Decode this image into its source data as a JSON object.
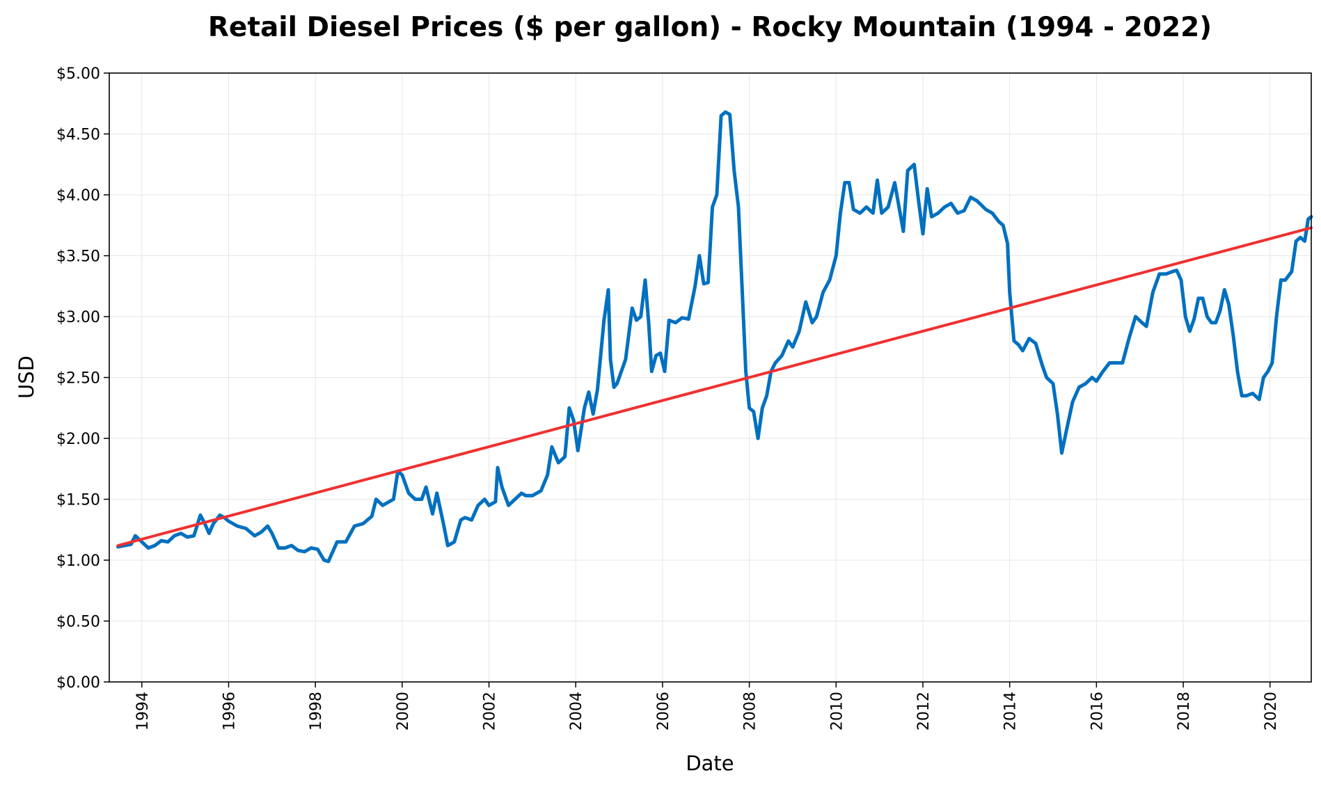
{
  "chart_data": {
    "type": "line",
    "title": "Retail Diesel Prices ($ per gallon) - Rocky Mountain (1994 - 2022)",
    "xlabel": "Date",
    "ylabel": "USD",
    "xlim": [
      1993.25,
      2020.95
    ],
    "ylim": [
      0,
      5
    ],
    "grid": true,
    "legend": "none",
    "x_tick_labels": [
      "1994",
      "1996",
      "1998",
      "2000",
      "2002",
      "2004",
      "2006",
      "2008",
      "2010",
      "2012",
      "2014",
      "2016",
      "2018",
      "2020"
    ],
    "y_tick_labels": [
      "$0.00",
      "$0.50",
      "$1.00",
      "$1.50",
      "$2.00",
      "$2.50",
      "$3.00",
      "$3.50",
      "$4.00",
      "$4.50",
      "$5.00"
    ],
    "series": [
      {
        "color": "#0070c0",
        "x": [
          1993.45,
          1993.6,
          1993.75,
          1993.85,
          1994.0,
          1994.15,
          1994.3,
          1994.45,
          1994.6,
          1994.75,
          1994.9,
          1995.05,
          1995.2,
          1995.35,
          1995.45,
          1995.55,
          1995.65,
          1995.8,
          1995.9,
          1996.0,
          1996.2,
          1996.4,
          1996.6,
          1996.75,
          1996.9,
          1997.0,
          1997.15,
          1997.3,
          1997.45,
          1997.6,
          1997.75,
          1997.9,
          1998.05,
          1998.2,
          1998.3,
          1998.5,
          1998.7,
          1998.9,
          1999.1,
          1999.3,
          1999.4,
          1999.55,
          1999.7,
          1999.8,
          1999.9,
          2000.0,
          2000.15,
          2000.3,
          2000.45,
          2000.55,
          2000.7,
          2000.8,
          2000.95,
          2001.05,
          2001.2,
          2001.35,
          2001.45,
          2001.6,
          2001.75,
          2001.9,
          2002.0,
          2002.15,
          2002.2,
          2002.3,
          2002.45,
          2002.6,
          2002.75,
          2002.85,
          2003.0,
          2003.2,
          2003.35,
          2003.45,
          2003.6,
          2003.75,
          2003.85,
          2003.95,
          2004.05,
          2004.2,
          2004.3,
          2004.4,
          2004.5,
          2004.65,
          2004.75,
          2004.8,
          2004.88,
          2004.95,
          2005.05,
          2005.15,
          2005.3,
          2005.4,
          2005.5,
          2005.6,
          2005.68,
          2005.75,
          2005.85,
          2005.95,
          2006.05,
          2006.15,
          2006.3,
          2006.45,
          2006.6,
          2006.75,
          2006.85,
          2006.95,
          2007.05,
          2007.15,
          2007.25,
          2007.35,
          2007.45,
          2007.55,
          2007.65,
          2007.75,
          2007.85,
          2007.92,
          2008.0,
          2008.1,
          2008.2,
          2008.3,
          2008.4,
          2008.5,
          2008.6,
          2008.75,
          2008.9,
          2009.0,
          2009.15,
          2009.3,
          2009.45,
          2009.55,
          2009.7,
          2009.85,
          2010.0,
          2010.1,
          2010.2,
          2010.3,
          2010.4,
          2010.55,
          2010.7,
          2010.85,
          2010.95,
          2011.05,
          2011.2,
          2011.35,
          2011.45,
          2011.55,
          2011.65,
          2011.8,
          2011.9,
          2012.0,
          2012.1,
          2012.2,
          2012.35,
          2012.5,
          2012.65,
          2012.8,
          2012.95,
          2013.1,
          2013.25,
          2013.45,
          2013.6,
          2013.75,
          2013.85,
          2013.95,
          2014.0,
          2014.1,
          2014.2,
          2014.3,
          2014.45,
          2014.6,
          2014.75,
          2014.85,
          2015.0,
          2015.1,
          2015.2,
          2015.3,
          2015.45,
          2015.6,
          2015.75,
          2015.9,
          2016.0,
          2016.15,
          2016.3,
          2016.45,
          2016.6,
          2016.75,
          2016.9,
          2017.05,
          2017.15,
          2017.3,
          2017.45,
          2017.6,
          2017.75,
          2017.85,
          2017.95,
          2018.05,
          2018.15,
          2018.25,
          2018.35,
          2018.45,
          2018.55,
          2018.65,
          2018.75,
          2018.85,
          2018.95,
          2019.05,
          2019.15,
          2019.25,
          2019.35,
          2019.45,
          2019.6,
          2019.75,
          2019.85,
          2019.95,
          2020.05,
          2020.15,
          2020.25,
          2020.35,
          2020.5,
          2020.6,
          2020.7,
          2020.8,
          2020.88,
          2020.95
        ],
        "values": [
          1.11,
          1.12,
          1.13,
          1.2,
          1.15,
          1.1,
          1.12,
          1.16,
          1.15,
          1.2,
          1.22,
          1.19,
          1.2,
          1.37,
          1.3,
          1.22,
          1.3,
          1.37,
          1.35,
          1.32,
          1.28,
          1.26,
          1.2,
          1.23,
          1.28,
          1.22,
          1.1,
          1.1,
          1.12,
          1.08,
          1.07,
          1.1,
          1.09,
          1.0,
          0.99,
          1.15,
          1.15,
          1.28,
          1.3,
          1.36,
          1.5,
          1.45,
          1.48,
          1.5,
          1.73,
          1.7,
          1.55,
          1.5,
          1.5,
          1.6,
          1.38,
          1.55,
          1.3,
          1.12,
          1.15,
          1.33,
          1.35,
          1.33,
          1.45,
          1.5,
          1.45,
          1.48,
          1.76,
          1.6,
          1.45,
          1.5,
          1.55,
          1.53,
          1.53,
          1.57,
          1.7,
          1.93,
          1.8,
          1.85,
          2.25,
          2.15,
          1.9,
          2.25,
          2.38,
          2.2,
          2.4,
          2.97,
          3.22,
          2.65,
          2.42,
          2.45,
          2.55,
          2.65,
          3.07,
          2.97,
          3.0,
          3.3,
          2.95,
          2.55,
          2.68,
          2.7,
          2.55,
          2.97,
          2.95,
          2.99,
          2.98,
          3.25,
          3.5,
          3.27,
          3.28,
          3.9,
          4.0,
          4.65,
          4.68,
          4.66,
          4.2,
          3.9,
          3.1,
          2.55,
          2.25,
          2.22,
          2.0,
          2.25,
          2.35,
          2.55,
          2.62,
          2.68,
          2.8,
          2.75,
          2.88,
          3.12,
          2.95,
          3.0,
          3.2,
          3.3,
          3.5,
          3.85,
          4.1,
          4.1,
          3.88,
          3.85,
          3.9,
          3.85,
          4.12,
          3.85,
          3.9,
          4.1,
          3.9,
          3.7,
          4.2,
          4.25,
          3.95,
          3.68,
          4.05,
          3.82,
          3.85,
          3.9,
          3.93,
          3.85,
          3.87,
          3.98,
          3.95,
          3.88,
          3.85,
          3.78,
          3.75,
          3.6,
          3.2,
          2.8,
          2.77,
          2.72,
          2.82,
          2.78,
          2.6,
          2.5,
          2.45,
          2.2,
          1.88,
          2.05,
          2.3,
          2.42,
          2.45,
          2.5,
          2.47,
          2.55,
          2.62,
          2.62,
          2.62,
          2.82,
          3.0,
          2.95,
          2.92,
          3.2,
          3.35,
          3.35,
          3.37,
          3.38,
          3.3,
          3.0,
          2.88,
          2.98,
          3.15,
          3.15,
          3.0,
          2.95,
          2.95,
          3.05,
          3.22,
          3.1,
          2.85,
          2.55,
          2.35,
          2.35,
          2.37,
          2.32,
          2.5,
          2.55,
          2.62,
          3.0,
          3.3,
          3.3,
          3.37,
          3.62,
          3.65,
          3.62,
          3.8,
          3.82
        ]
      },
      {
        "color": "#f03030",
        "x": [
          1993.45,
          2020.95
        ],
        "values": [
          1.12,
          3.73
        ]
      }
    ]
  }
}
